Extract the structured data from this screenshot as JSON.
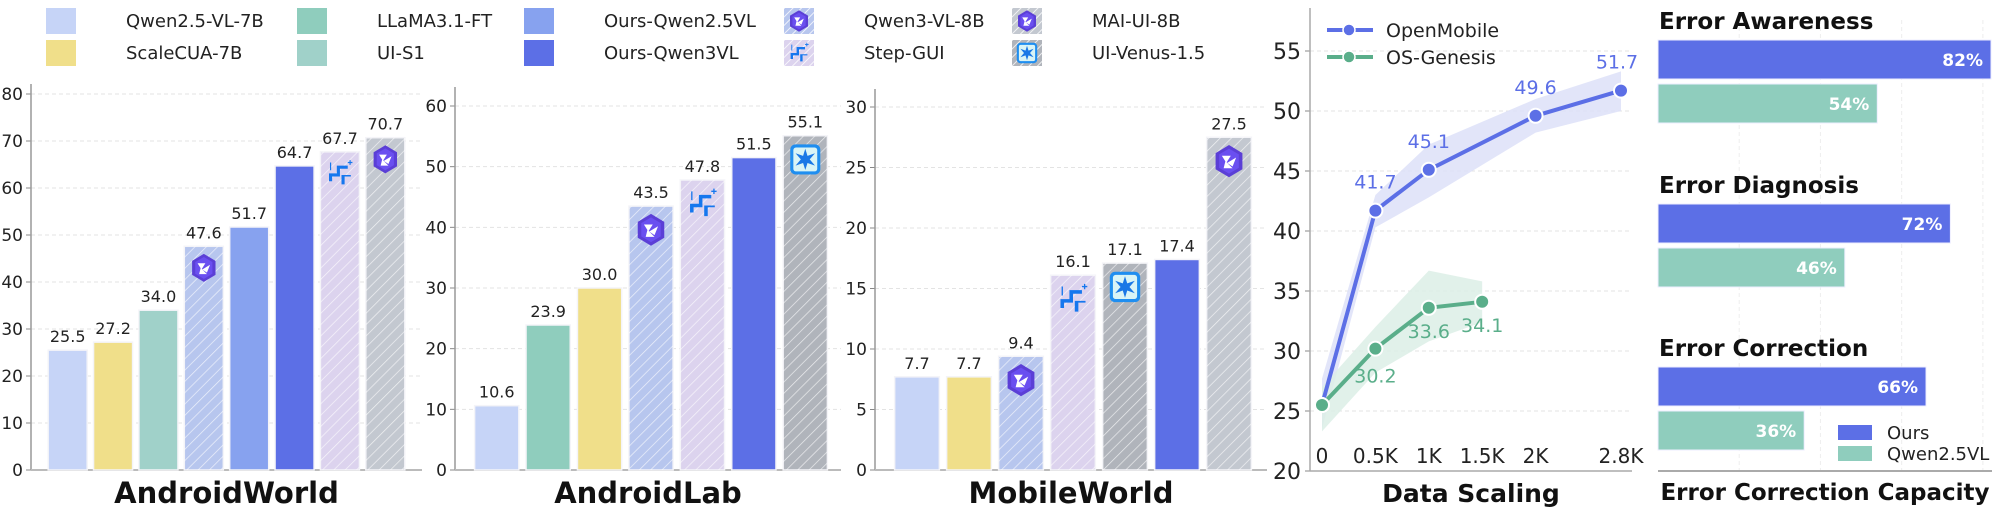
{
  "legend": {
    "items": [
      {
        "label": "Qwen2.5-VL-7B",
        "color": "#c6d4f7",
        "hatch": false,
        "icon": ""
      },
      {
        "label": "ScaleCUA-7B",
        "color": "#f0df8a",
        "hatch": false,
        "icon": ""
      },
      {
        "label": "LLaMA3.1-FT",
        "color": "#8fcdbd",
        "hatch": false,
        "icon": ""
      },
      {
        "label": "UI-S1",
        "color": "#a0d1c9",
        "hatch": false,
        "icon": ""
      },
      {
        "label": "Ours-Qwen2.5VL",
        "color": "#87a2ef",
        "hatch": false,
        "icon": ""
      },
      {
        "label": "Ours-Qwen3VL",
        "color": "#5c6fe6",
        "hatch": false,
        "icon": ""
      },
      {
        "label": "Qwen3-VL-8B",
        "color": "#b7c6ee",
        "hatch": true,
        "icon": "qwen-logo-icon"
      },
      {
        "label": "Step-GUI",
        "color": "#dcd3ee",
        "hatch": true,
        "icon": "step-gui-logo-icon"
      },
      {
        "label": "MAI-UI-8B",
        "color": "#c3c8d0",
        "hatch": true,
        "icon": "qwen-logo-icon"
      },
      {
        "label": "UI-Venus-1.5",
        "color": "#b0b4bb",
        "hatch": true,
        "icon": "ui-venus-logo-icon"
      }
    ]
  },
  "colors": {
    "ours": "#5c6fe6",
    "qwen25vl": "#8fcdbd",
    "openmobile": "#5c6fe6",
    "osgenesis": "#5aae8a",
    "axis": "#999999",
    "grid": "#e3e3e3"
  },
  "chart_data": [
    {
      "type": "bar",
      "title": "AndroidWorld",
      "categories": [
        "Qwen2.5-VL-7B",
        "ScaleCUA-7B",
        "UI-S1",
        "Qwen3-VL-8B",
        "Ours-Qwen2.5VL",
        "Ours-Qwen3VL",
        "Step-GUI",
        "MAI-UI-8B"
      ],
      "values": [
        25.5,
        27.2,
        34.0,
        47.6,
        51.7,
        64.7,
        67.7,
        70.7
      ],
      "labels": [
        "25.5",
        "27.2",
        "34.0",
        "47.6",
        "51.7",
        "64.7",
        "67.7",
        "70.7"
      ],
      "yticks": [
        "0",
        "10",
        "20",
        "30",
        "40",
        "50",
        "60",
        "70",
        "80"
      ],
      "ylim": [
        0,
        80
      ],
      "grid": true
    },
    {
      "type": "bar",
      "title": "AndroidLab",
      "categories": [
        "Qwen2.5-VL-7B",
        "LLaMA3.1-FT",
        "ScaleCUA-7B",
        "Qwen3-VL-8B",
        "Step-GUI",
        "Ours-Qwen3VL",
        "UI-Venus-1.5"
      ],
      "values": [
        10.6,
        23.9,
        30.0,
        43.5,
        47.8,
        51.5,
        55.1
      ],
      "labels": [
        "10.6",
        "23.9",
        "30.0",
        "43.5",
        "47.8",
        "51.5",
        "55.1"
      ],
      "yticks": [
        "0",
        "10",
        "20",
        "30",
        "40",
        "50",
        "60"
      ],
      "ylim": [
        0,
        60
      ],
      "grid": true
    },
    {
      "type": "bar",
      "title": "MobileWorld",
      "categories": [
        "Qwen2.5-VL-7B",
        "ScaleCUA-7B",
        "Qwen3-VL-8B",
        "Step-GUI",
        "UI-Venus-1.5",
        "Ours-Qwen3VL",
        "MAI-UI-8B"
      ],
      "values": [
        7.7,
        7.7,
        9.4,
        16.1,
        17.1,
        17.4,
        27.5
      ],
      "labels": [
        "7.7",
        "7.7",
        "9.4",
        "16.1",
        "17.1",
        "17.4",
        "27.5"
      ],
      "yticks": [
        "0",
        "5",
        "10",
        "15",
        "20",
        "25",
        "30"
      ],
      "ylim": [
        0,
        30
      ],
      "grid": true
    },
    {
      "type": "line",
      "title": "Data Scaling",
      "x": [
        "0",
        "0.5K",
        "1K",
        "1.5K",
        "2K",
        "2.8K"
      ],
      "xpos": [
        0,
        0.5,
        1,
        1.5,
        2,
        2.8
      ],
      "series": [
        {
          "name": "OpenMobile",
          "x": [
            0,
            0.5,
            1,
            2,
            2.8
          ],
          "values": [
            25.5,
            41.7,
            45.1,
            49.6,
            51.7
          ],
          "labels": [
            "",
            "41.7",
            "45.1",
            "49.6",
            "51.7"
          ],
          "band_low": [
            23.5,
            40.3,
            42.8,
            48.2,
            50.0
          ],
          "band_high": [
            27.7,
            43.0,
            47.2,
            51.0,
            53.3
          ]
        },
        {
          "name": "OS-Genesis",
          "x": [
            0,
            0.5,
            1,
            1.5
          ],
          "values": [
            25.5,
            30.2,
            33.6,
            34.1
          ],
          "labels": [
            "",
            "30.2",
            "33.6",
            "34.1"
          ],
          "band_low": [
            23.3,
            28.2,
            30.8,
            32.4
          ],
          "band_high": [
            27.0,
            32.0,
            36.7,
            35.8
          ]
        }
      ],
      "yticks": [
        "20",
        "25",
        "30",
        "35",
        "40",
        "45",
        "50",
        "55"
      ],
      "ylim": [
        20,
        58
      ],
      "legend_position": "upper left",
      "grid": true
    },
    {
      "type": "bar",
      "orientation": "horizontal",
      "title": "Error Correction Capacity",
      "categories": [
        "Error Awareness",
        "Error Diagnosis",
        "Error Correction"
      ],
      "series": [
        {
          "name": "Ours",
          "values": [
            82,
            72,
            66
          ],
          "labels": [
            "82%",
            "72%",
            "66%"
          ]
        },
        {
          "name": "Qwen2.5VL",
          "values": [
            54,
            46,
            36
          ],
          "labels": [
            "54%",
            "46%",
            "36%"
          ]
        }
      ],
      "xlim": [
        0,
        82
      ],
      "legend_position": "lower right",
      "grid": true
    }
  ]
}
